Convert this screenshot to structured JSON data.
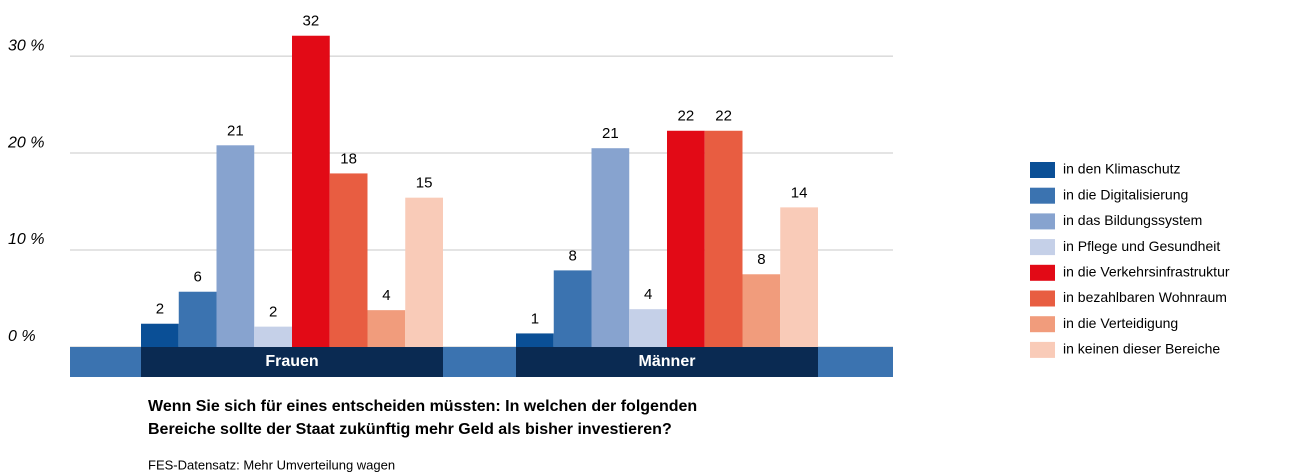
{
  "chart_data": {
    "type": "bar",
    "question": [
      "Wenn Sie sich für eines entscheiden müssten: In welchen der folgenden",
      "Bereiche sollte der Staat zukünftig mehr Geld als bisher investieren?"
    ],
    "source": "FES-Datensatz: Mehr Umverteilung wagen",
    "categories": [
      "Frauen",
      "Männer"
    ],
    "series": [
      {
        "name": "in den Klimaschutz",
        "color": "#0a4f96",
        "values": [
          2.4,
          1.4
        ],
        "value_labels": [
          "2",
          "1"
        ]
      },
      {
        "name": "in die Digitalisierung",
        "color": "#3b73b0",
        "values": [
          5.7,
          7.9
        ],
        "value_labels": [
          "6",
          "8"
        ]
      },
      {
        "name": "in das Bildungssystem",
        "color": "#87a3cf",
        "values": [
          20.8,
          20.5
        ],
        "value_labels": [
          "21",
          "21"
        ]
      },
      {
        "name": "in Pflege und Gesundheit",
        "color": "#c5d0e8",
        "values": [
          2.1,
          3.9
        ],
        "value_labels": [
          "2",
          "4"
        ]
      },
      {
        "name": "in die Verkehrsinfrastruktur",
        "color": "#e20a16",
        "values": [
          32.1,
          22.3
        ],
        "value_labels": [
          "32",
          "22"
        ]
      },
      {
        "name": "in bezahlbaren Wohnraum",
        "color": "#e85d41",
        "values": [
          17.9,
          22.3
        ],
        "value_labels": [
          "18",
          "22"
        ]
      },
      {
        "name": "in die Verteidigung",
        "color": "#f19c7c",
        "values": [
          3.8,
          7.5
        ],
        "value_labels": [
          "4",
          "8"
        ]
      },
      {
        "name": "in keinen dieser Bereiche",
        "color": "#f9cbb8",
        "values": [
          15.4,
          14.4
        ],
        "value_labels": [
          "15",
          "14"
        ]
      }
    ],
    "ylim": [
      0,
      33
    ],
    "yticks": [
      {
        "value": 0,
        "label": "0 %"
      },
      {
        "value": 10,
        "label": "10 %"
      },
      {
        "value": 20,
        "label": "20 %"
      },
      {
        "value": 30,
        "label": "30 %"
      }
    ],
    "grid": true
  }
}
